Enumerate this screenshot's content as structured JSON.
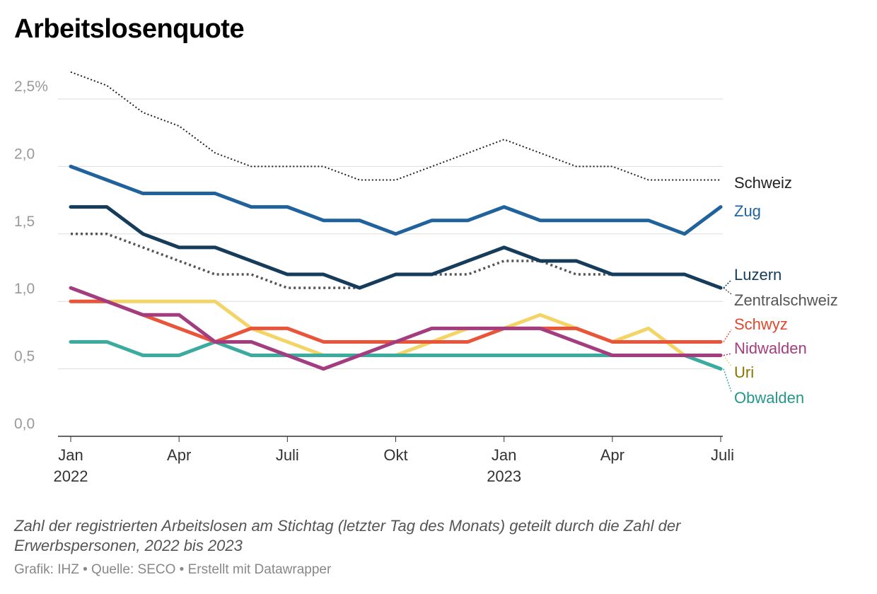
{
  "title": "Arbeitslosenquote",
  "description": "Zahl der registrierten Arbeitslosen am Stichtag (letzter Tag des Monats) geteilt durch die Zahl der Erwerbspersonen, 2022 bis 2023",
  "source": "Grafik: IHZ • Quelle: SECO • Erstellt mit Datawrapper",
  "chart_data": {
    "type": "line",
    "x": [
      "2022-01",
      "2022-02",
      "2022-03",
      "2022-04",
      "2022-05",
      "2022-06",
      "2022-07",
      "2022-08",
      "2022-09",
      "2022-10",
      "2022-11",
      "2022-12",
      "2023-01",
      "2023-02",
      "2023-03",
      "2023-04",
      "2023-05",
      "2023-06",
      "2023-07"
    ],
    "x_ticks": [
      {
        "month": "2022-01",
        "label": "Jan",
        "sublabel": "2022"
      },
      {
        "month": "2022-04",
        "label": "Apr",
        "sublabel": ""
      },
      {
        "month": "2022-07",
        "label": "Juli",
        "sublabel": ""
      },
      {
        "month": "2022-10",
        "label": "Okt",
        "sublabel": ""
      },
      {
        "month": "2023-01",
        "label": "Jan",
        "sublabel": "2023"
      },
      {
        "month": "2023-04",
        "label": "Apr",
        "sublabel": ""
      },
      {
        "month": "2023-07",
        "label": "Juli",
        "sublabel": ""
      }
    ],
    "y_ticks": [
      {
        "value": 0,
        "label": "0,0"
      },
      {
        "value": 0.5,
        "label": "0,5"
      },
      {
        "value": 1.0,
        "label": "1,0"
      },
      {
        "value": 1.5,
        "label": "1,5"
      },
      {
        "value": 2.0,
        "label": "2,0"
      },
      {
        "value": 2.5,
        "label": "2,5%"
      }
    ],
    "ylim": [
      0,
      2.75
    ],
    "grid": true,
    "legend": "direct labels right",
    "series": [
      {
        "name": "Schweiz",
        "color": "#222222",
        "style": "dotted-thin",
        "label_color": "#222222",
        "values": [
          2.7,
          2.6,
          2.4,
          2.3,
          2.1,
          2.0,
          2.0,
          2.0,
          1.9,
          1.9,
          2.0,
          2.1,
          2.2,
          2.1,
          2.0,
          2.0,
          1.9,
          1.9,
          1.9
        ]
      },
      {
        "name": "Zug",
        "color": "#20629b",
        "style": "solid",
        "label_color": "#20629b",
        "values": [
          2.0,
          1.9,
          1.8,
          1.8,
          1.8,
          1.7,
          1.7,
          1.6,
          1.6,
          1.5,
          1.6,
          1.6,
          1.7,
          1.6,
          1.6,
          1.6,
          1.6,
          1.5,
          1.7
        ]
      },
      {
        "name": "Zentralschweiz",
        "color": "#555555",
        "style": "dotted-thick",
        "label_color": "#555555",
        "values": [
          1.5,
          1.5,
          1.4,
          1.3,
          1.2,
          1.2,
          1.1,
          1.1,
          1.1,
          1.2,
          1.2,
          1.2,
          1.3,
          1.3,
          1.2,
          1.2,
          1.2,
          1.2,
          1.1
        ]
      },
      {
        "name": "Luzern",
        "color": "#163c5c",
        "style": "solid",
        "label_color": "#163c5c",
        "values": [
          1.7,
          1.7,
          1.5,
          1.4,
          1.4,
          1.3,
          1.2,
          1.2,
          1.1,
          1.2,
          1.2,
          1.3,
          1.4,
          1.3,
          1.3,
          1.2,
          1.2,
          1.2,
          1.1
        ]
      },
      {
        "name": "Uri",
        "color": "#f3d466",
        "style": "solid",
        "label_color": "#8a7400",
        "values": [
          1.0,
          1.0,
          1.0,
          1.0,
          1.0,
          0.8,
          0.7,
          0.6,
          0.6,
          0.6,
          0.7,
          0.8,
          0.8,
          0.9,
          0.8,
          0.7,
          0.8,
          0.6,
          0.6
        ]
      },
      {
        "name": "Obwalden",
        "color": "#3aab9e",
        "style": "solid",
        "label_color": "#24968a",
        "values": [
          0.7,
          0.7,
          0.6,
          0.6,
          0.7,
          0.6,
          0.6,
          0.6,
          0.6,
          0.6,
          0.6,
          0.6,
          0.6,
          0.6,
          0.6,
          0.6,
          0.6,
          0.6,
          0.5
        ]
      },
      {
        "name": "Schwyz",
        "color": "#e8553a",
        "style": "solid",
        "label_color": "#e0482e",
        "values": [
          1.0,
          1.0,
          0.9,
          0.8,
          0.7,
          0.8,
          0.8,
          0.7,
          0.7,
          0.7,
          0.7,
          0.7,
          0.8,
          0.8,
          0.8,
          0.7,
          0.7,
          0.7,
          0.7
        ]
      },
      {
        "name": "Nidwalden",
        "color": "#a33d80",
        "style": "solid",
        "label_color": "#a33d80",
        "values": [
          1.1,
          1.0,
          0.9,
          0.9,
          0.7,
          0.7,
          0.6,
          0.5,
          0.6,
          0.7,
          0.8,
          0.8,
          0.8,
          0.8,
          0.7,
          0.6,
          0.6,
          0.6,
          0.6
        ]
      }
    ]
  }
}
